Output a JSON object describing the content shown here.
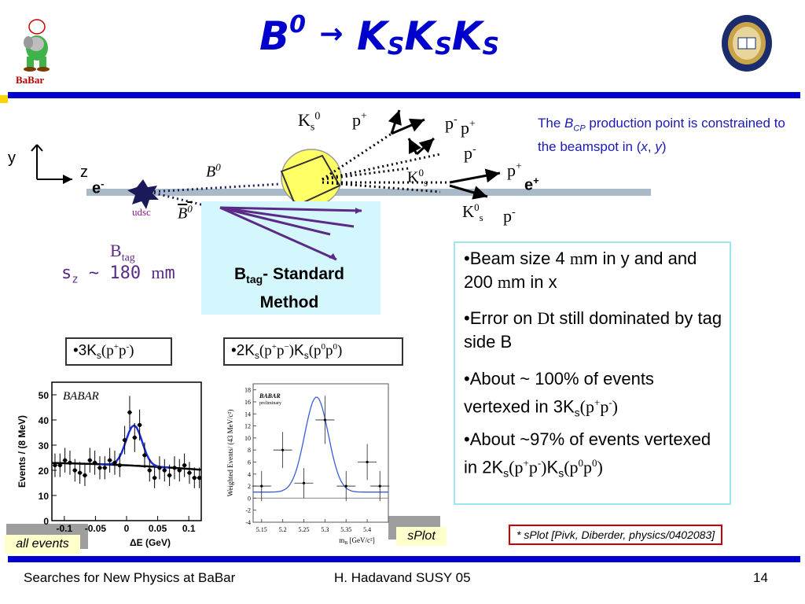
{
  "title": {
    "B": "B",
    "B_sup": "0",
    "arrow": "→",
    "K": "K",
    "S": "S"
  },
  "logo_left": {
    "text": "BaBar"
  },
  "diagram": {
    "y_axis": "y",
    "z_axis": "z",
    "e_minus": "e",
    "e_minus_sup": "-",
    "e_plus": "e",
    "e_plus_sup": "+",
    "B0": "B",
    "B0_sup": "0",
    "B0bar": "B",
    "B0bar_sup": "0",
    "udsc": "udsc",
    "Ks_top": "K",
    "Ks_top_sub": "s",
    "Ks_top_sup": "0",
    "Ks_mid": "K",
    "Ks_mid_sup": "0",
    "Ks_mid_sub": "s",
    "Ks_bot": "K",
    "Ks_bot_sup": "0",
    "Ks_bot_sub": "s",
    "pi_plus_1": "p",
    "pi_plus_1_sup": "+",
    "pi_minus_1": "p",
    "pi_minus_1_sup": "-",
    "pi_plus_2": "p",
    "pi_plus_2_sup": "+",
    "pi_minus_2": "p",
    "pi_minus_2_sup": "-",
    "pi_plus_3": "p",
    "pi_plus_3_sup": "+",
    "pi_minus_3": "p",
    "pi_minus_3_sup": "-",
    "btag": "B",
    "btag_sub": "tag",
    "sigma_z": "s",
    "sigma_z_sub": "z",
    "sigma_z_val": " ~ 180 ",
    "sigma_z_unit": "m",
    "sigma_z_unit2": "m"
  },
  "btag_method": {
    "line1_b": "B",
    "line1_sub": "tag",
    "line1_rest": "- Standard",
    "line2": "Method"
  },
  "beamspot_note": {
    "pre": "The ",
    "B": "B",
    "cp": "CP",
    "mid": " production point is constrained to the beamspot in (",
    "x": "x",
    "comma": ", ",
    "y": "y",
    "post": ")"
  },
  "bullets": [
    {
      "pre": "•Beam size 4 ",
      "mu": "m",
      "post": "m in y and and 200 ",
      "mu2": "m",
      "post2": "m in x"
    },
    {
      "pre": "•Error on ",
      "D": "D",
      "post": "t still dominated by tag side B"
    },
    {
      "pre": "•About ~ 100% of events vertexed in 3K",
      "sub": "s",
      "p1": "(p",
      "s1": "+",
      "p2": "p",
      "s2": "-",
      "p3": ")"
    },
    {
      "pre": "•About ~97% of events vertexed in 2K",
      "sub": "s",
      "p1": "(p",
      "s1": "+",
      "p2": "p",
      "s2": "-",
      "p3": ")",
      "k": "K",
      "ksub": "s",
      "q1": "(p",
      "q1s": "0",
      "q2": "p",
      "q2s": "0",
      "q3": ")"
    }
  ],
  "mode_box_1": {
    "pre": "•3K",
    "sub": "s",
    "p1": "(p",
    "s1": "+",
    "p2": "p",
    "s2": "-",
    "p3": ")"
  },
  "mode_box_2": {
    "pre": "•2K",
    "sub": "s",
    "p1": "(p",
    "s1": "+",
    "p2": "p",
    "s2": "−",
    "p3": ")",
    "k": "K",
    "ksub": "s",
    "q1": "(p",
    "q1s": "0",
    "q2": "p",
    "q2s": "0",
    "q3": ")"
  },
  "plot_left": {
    "ylabel": "Events / (8 MeV)",
    "xlabel": "ΔE (GeV)",
    "yticks": [
      "0",
      "10",
      "20",
      "30",
      "40",
      "50"
    ],
    "xticks": [
      "-0.1",
      "-0.05",
      "0",
      "0.05",
      "0.1"
    ],
    "watermark": "BABAR",
    "caption": "all events"
  },
  "plot_right": {
    "ylabel": "Weighted Events/ (43 MeV/c²)",
    "xlabel": "m",
    "xlabel_sub": "B",
    "xlabel_unit": " [GeV/c²]",
    "yticks": [
      "-4",
      "-2",
      "0",
      "2",
      "4",
      "6",
      "8",
      "10",
      "12",
      "14",
      "16",
      "18"
    ],
    "xticks": [
      "5.15",
      "5.2",
      "5.25",
      "5.3",
      "5.35",
      "5.4"
    ],
    "watermark": "BABAR",
    "watermark2": "preliminary",
    "caption": "sPlot"
  },
  "chart_data": [
    {
      "type": "scatter",
      "xlabel": "ΔE (GeV)",
      "ylabel": "Events / (8 MeV)",
      "xlim": [
        -0.12,
        0.12
      ],
      "ylim": [
        0,
        55
      ],
      "x": [
        -0.115,
        -0.107,
        -0.099,
        -0.091,
        -0.083,
        -0.075,
        -0.067,
        -0.059,
        -0.051,
        -0.043,
        -0.035,
        -0.027,
        -0.019,
        -0.011,
        -0.003,
        0.005,
        0.013,
        0.021,
        0.029,
        0.037,
        0.045,
        0.053,
        0.061,
        0.069,
        0.077,
        0.085,
        0.093,
        0.101,
        0.109,
        0.117
      ],
      "y": [
        22,
        22,
        24,
        23,
        20,
        19,
        18,
        24,
        23,
        21,
        21,
        24,
        23,
        22,
        32,
        43,
        33,
        38,
        26,
        20,
        17,
        21,
        20,
        18,
        21,
        20,
        22,
        19,
        17,
        17
      ]
    },
    {
      "type": "scatter",
      "xlabel": "m_B [GeV/c²]",
      "ylabel": "Weighted Events/ (43 MeV/c²)",
      "xlim": [
        5.13,
        5.45
      ],
      "ylim": [
        -4,
        19
      ],
      "x": [
        5.15,
        5.2,
        5.25,
        5.3,
        5.35,
        5.4,
        5.43
      ],
      "y": [
        2,
        8,
        2.5,
        13,
        2,
        6,
        2
      ]
    }
  ],
  "splot_ref": "* sPlot [Pivk, Diberder, physics/0402083]",
  "footer": {
    "left": "Searches for New Physics at BaBar",
    "center": "H. Hadavand  SUSY 05",
    "page": "14"
  }
}
